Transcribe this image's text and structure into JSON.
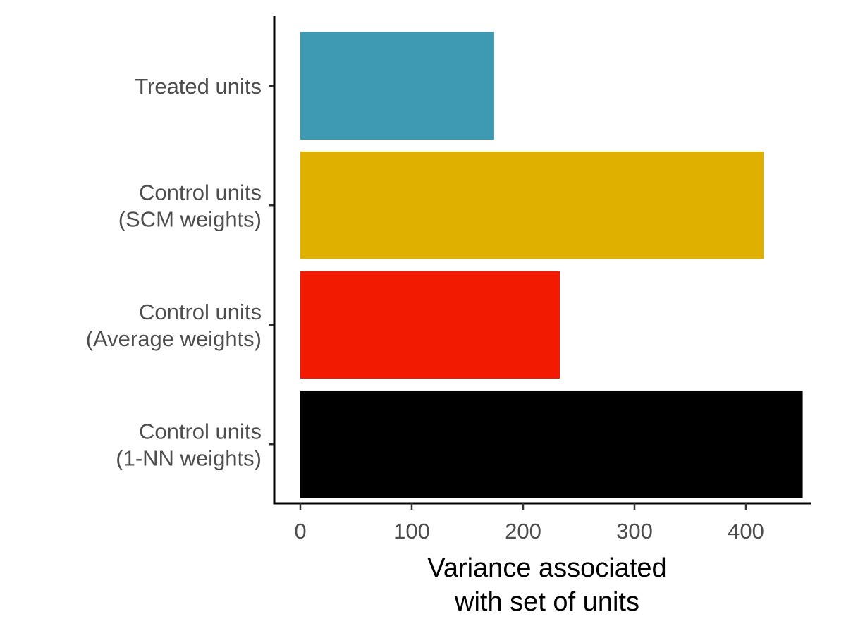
{
  "chart_data": {
    "type": "bar",
    "orientation": "horizontal",
    "categories": [
      [
        "Treated units"
      ],
      [
        "Control units",
        "(SCM weights)"
      ],
      [
        "Control units",
        "(Average weights)"
      ],
      [
        "Control units",
        "(1-NN weights)"
      ]
    ],
    "values": [
      174,
      416,
      233,
      451
    ],
    "colors": [
      "#3d9ab2",
      "#e0b000",
      "#f21a00",
      "#000000"
    ],
    "xlabel": [
      "Variance associated",
      "with set of units"
    ],
    "ylabel": "",
    "title": "",
    "xlim": [
      0,
      460
    ],
    "xticks": [
      0,
      100,
      200,
      300,
      400
    ],
    "grid": false,
    "legend": "none"
  }
}
